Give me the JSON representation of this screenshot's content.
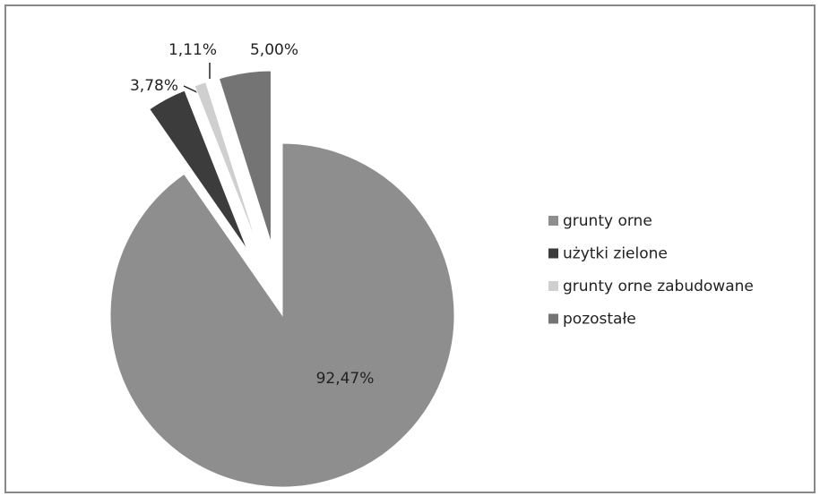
{
  "chart_data": {
    "type": "pie",
    "categories": [
      "grunty orne",
      "użytki zielone",
      "grunty orne zabudowane",
      "pozostałe"
    ],
    "values": [
      92.47,
      3.78,
      1.11,
      5.0
    ],
    "value_labels": [
      "92,47%",
      "3,78%",
      "1,11%",
      "5,00%"
    ],
    "colors": [
      "#8e8e8e",
      "#3c3c3c",
      "#cfcfcf",
      "#747474"
    ],
    "legend": "right"
  }
}
